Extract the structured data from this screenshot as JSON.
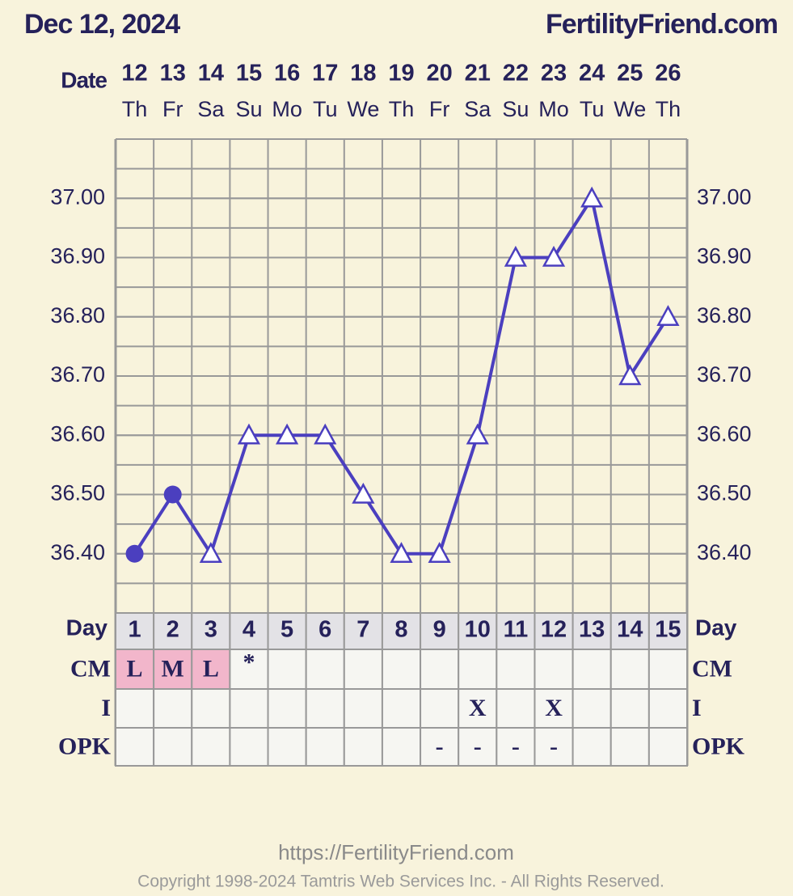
{
  "chart_data": {
    "type": "line",
    "title": "Dec 12, 2024",
    "site": "FertilityFriend.com",
    "date_label": "Date",
    "dates": [
      "12",
      "13",
      "14",
      "15",
      "16",
      "17",
      "18",
      "19",
      "20",
      "21",
      "22",
      "23",
      "24",
      "25",
      "26"
    ],
    "weekdays": [
      "Th",
      "Fr",
      "Sa",
      "Su",
      "Mo",
      "Tu",
      "We",
      "Th",
      "Fr",
      "Sa",
      "Su",
      "Mo",
      "Tu",
      "We",
      "Th"
    ],
    "series": [
      {
        "color": "#4b3fbf",
        "values": [
          36.4,
          36.5,
          36.4,
          36.6,
          36.6,
          36.6,
          36.5,
          36.4,
          36.4,
          36.6,
          36.9,
          36.9,
          37.0,
          36.7,
          36.8
        ],
        "markers": [
          "circle",
          "circle",
          "triangle",
          "triangle",
          "triangle",
          "triangle",
          "triangle",
          "triangle",
          "triangle",
          "triangle",
          "triangle",
          "triangle",
          "triangle",
          "triangle",
          "triangle"
        ]
      }
    ],
    "ylim": [
      36.3,
      37.1
    ],
    "yticks": [
      {
        "value": 36.4,
        "label": "36.40"
      },
      {
        "value": 36.5,
        "label": "36.50"
      },
      {
        "value": 36.6,
        "label": "36.60"
      },
      {
        "value": 36.7,
        "label": "36.70"
      },
      {
        "value": 36.8,
        "label": "36.80"
      },
      {
        "value": 36.9,
        "label": "36.90"
      },
      {
        "value": 37.0,
        "label": "37.00"
      }
    ],
    "grid": true,
    "day_label": "Day",
    "days": [
      1,
      2,
      3,
      4,
      5,
      6,
      7,
      8,
      9,
      10,
      11,
      12,
      13,
      14,
      15
    ],
    "rows": [
      {
        "label": "CM",
        "cells": [
          "L",
          "M",
          "L",
          "*",
          null,
          null,
          null,
          null,
          null,
          null,
          null,
          null,
          null,
          null,
          null
        ],
        "colors": [
          "#f2b6cb",
          "#f2b6cb",
          "#f2b6cb",
          null,
          null,
          null,
          null,
          null,
          null,
          null,
          null,
          null,
          null,
          null,
          null
        ]
      },
      {
        "label": "I",
        "cells": [
          null,
          null,
          null,
          null,
          null,
          null,
          null,
          null,
          null,
          "X",
          null,
          "X",
          null,
          null,
          null
        ]
      },
      {
        "label": "OPK",
        "cells": [
          null,
          null,
          null,
          null,
          null,
          null,
          null,
          null,
          "-",
          "-",
          "-",
          "-",
          null,
          null,
          null
        ]
      }
    ],
    "footer_url": "https://FertilityFriend.com",
    "copyright": "Copyright 1998-2024 Tamtris Web Services Inc. - All Rights Reserved."
  }
}
